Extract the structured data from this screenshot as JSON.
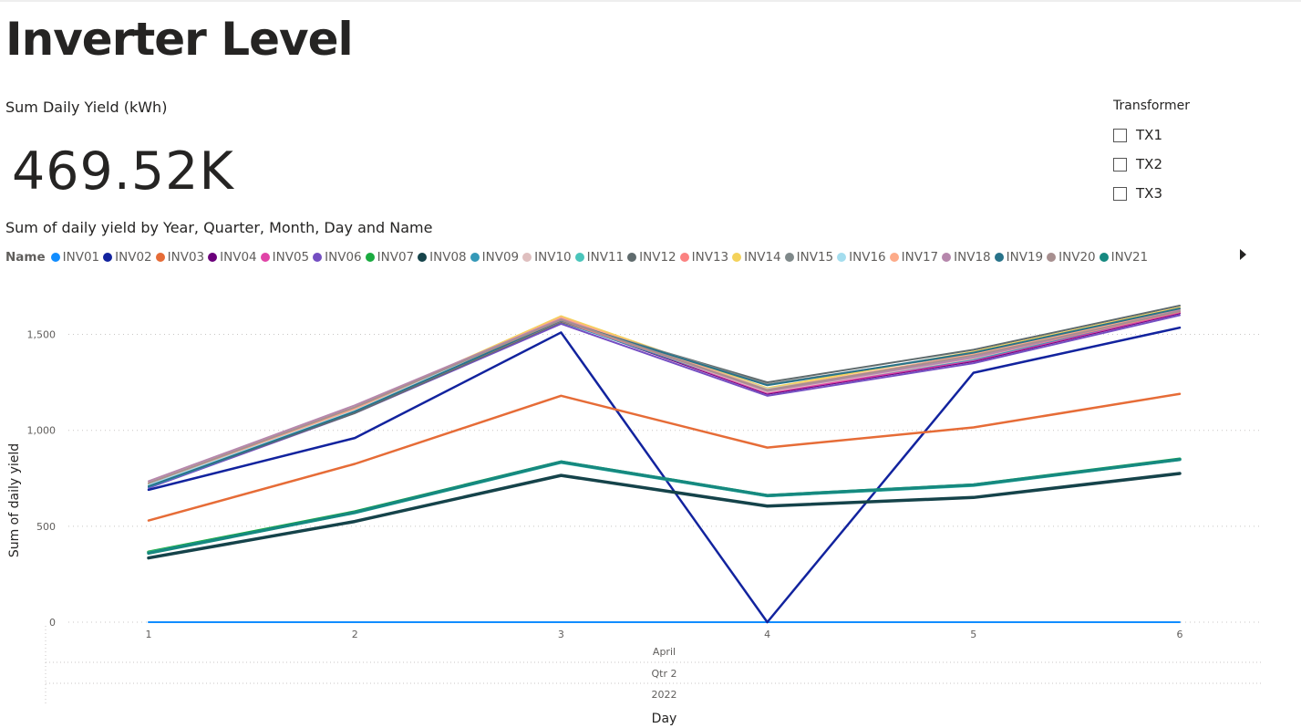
{
  "page": {
    "title": "Inverter Level"
  },
  "card": {
    "label": "Sum Daily Yield (kWh)",
    "value": "469.52K"
  },
  "slicer": {
    "title": "Transformer",
    "items": [
      "TX1",
      "TX2",
      "TX3"
    ]
  },
  "chart_data": {
    "type": "line",
    "title": "Sum of daily yield by Year, Quarter, Month, Day and Name",
    "xlabel": "Day",
    "ylabel": "Sum of daily yield",
    "legend_title": "Name",
    "legend_position": "top",
    "x": [
      1,
      2,
      3,
      4,
      5,
      6
    ],
    "x_hierarchy": [
      "April",
      "Qtr 2",
      "2022"
    ],
    "ylim": [
      0,
      1650
    ],
    "yticks": [
      0,
      500,
      1000,
      1500
    ],
    "ytick_labels": [
      "0",
      "500",
      "1,000",
      "1,500"
    ],
    "grid": true,
    "series": [
      {
        "name": "INV01",
        "color": "#118DFF",
        "values": [
          0,
          0,
          0,
          0,
          0,
          0
        ]
      },
      {
        "name": "INV02",
        "color": "#12239E",
        "values": [
          690,
          960,
          1510,
          0,
          1300,
          1535
        ]
      },
      {
        "name": "INV03",
        "color": "#E66C37",
        "values": [
          530,
          825,
          1180,
          910,
          1015,
          1190
        ]
      },
      {
        "name": "INV04",
        "color": "#6B007B",
        "values": [
          710,
          1100,
          1570,
          1190,
          1360,
          1610
        ]
      },
      {
        "name": "INV05",
        "color": "#E044A7",
        "values": [
          715,
          1105,
          1575,
          1195,
          1365,
          1615
        ]
      },
      {
        "name": "INV06",
        "color": "#744EC2",
        "values": [
          700,
          1090,
          1555,
          1180,
          1350,
          1600
        ]
      },
      {
        "name": "INV07",
        "color": "#1AAB40",
        "values": [
          365,
          575,
          835,
          660,
          715,
          850
        ]
      },
      {
        "name": "INV08",
        "color": "#15434A",
        "values": [
          335,
          525,
          765,
          605,
          650,
          775
        ]
      },
      {
        "name": "INV09",
        "color": "#3599B8",
        "values": [
          705,
          1095,
          1565,
          1205,
          1370,
          1620
        ]
      },
      {
        "name": "INV10",
        "color": "#DFBFBF",
        "values": [
          720,
          1110,
          1580,
          1200,
          1375,
          1625
        ]
      },
      {
        "name": "INV11",
        "color": "#4AC5BB",
        "values": [
          362,
          570,
          832,
          658,
          712,
          847
        ]
      },
      {
        "name": "INV12",
        "color": "#5F6B6D",
        "values": [
          710,
          1090,
          1565,
          1250,
          1420,
          1650
        ]
      },
      {
        "name": "INV13",
        "color": "#FB8281",
        "values": [
          712,
          1098,
          1570,
          1210,
          1380,
          1618
        ]
      },
      {
        "name": "INV14",
        "color": "#F4D25A",
        "values": [
          720,
          1115,
          1595,
          1220,
          1410,
          1640
        ]
      },
      {
        "name": "INV15",
        "color": "#7F898A",
        "values": [
          710,
          1100,
          1575,
          1240,
          1400,
          1630
        ]
      },
      {
        "name": "INV16",
        "color": "#A4DDEE",
        "values": [
          715,
          1105,
          1580,
          1215,
          1385,
          1622
        ]
      },
      {
        "name": "INV17",
        "color": "#FDAB89",
        "values": [
          725,
          1112,
          1588,
          1212,
          1395,
          1630
        ]
      },
      {
        "name": "INV18",
        "color": "#B687AC",
        "values": [
          735,
          1130,
          1580,
          1205,
          1380,
          1625
        ]
      },
      {
        "name": "INV19",
        "color": "#28738A",
        "values": [
          708,
          1098,
          1572,
          1235,
          1405,
          1635
        ]
      },
      {
        "name": "INV20",
        "color": "#A78F8F",
        "values": [
          725,
          1120,
          1575,
          1210,
          1390,
          1620
        ]
      },
      {
        "name": "INV21",
        "color": "#168980",
        "values": [
          360,
          572,
          835,
          660,
          715,
          848
        ]
      }
    ]
  }
}
